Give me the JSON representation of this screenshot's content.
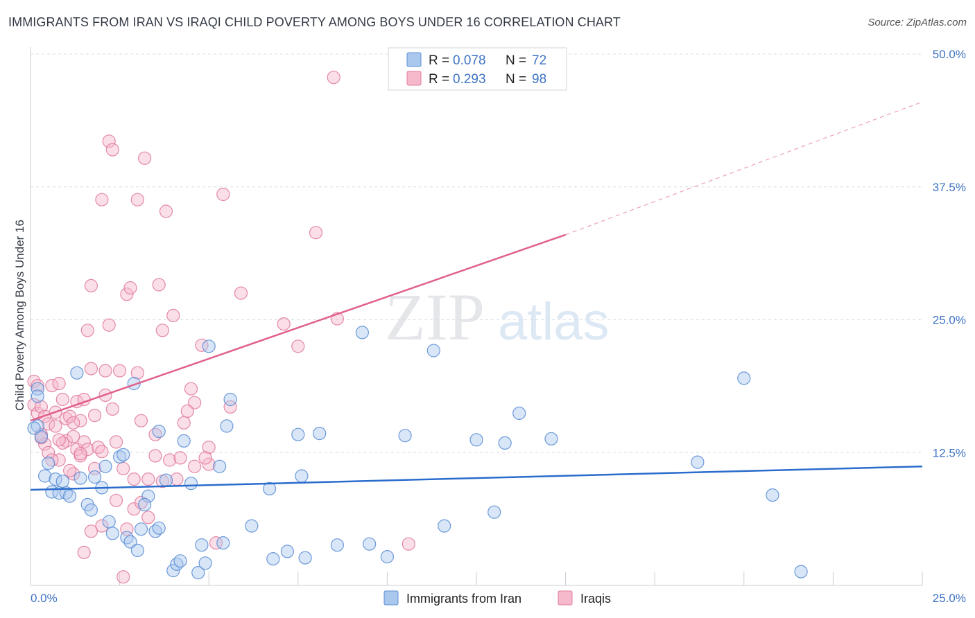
{
  "header": {
    "title": "IMMIGRANTS FROM IRAN VS IRAQI CHILD POVERTY AMONG BOYS UNDER 16 CORRELATION CHART",
    "source": "Source: ZipAtlas.com"
  },
  "watermark": {
    "zip": "ZIP",
    "atlas": "atlas"
  },
  "legend": {
    "series": [
      {
        "r_label": "R =",
        "r_value": "0.078",
        "n_label": "N =",
        "n_value": "72"
      },
      {
        "r_label": "R =",
        "r_value": "0.293",
        "n_label": "N =",
        "n_value": "98"
      }
    ]
  },
  "bottom_legend": [
    "Immigrants from Iran",
    "Iraqis"
  ],
  "colors": {
    "iran_fill": "#aac8ee",
    "iran_stroke": "#5b8fd6",
    "iran_line": "#2a6ccc",
    "iraq_fill": "#f6b9cb",
    "iraq_stroke": "#e07c9d",
    "iraq_line": "#e0608a",
    "grid": "#d9dde3",
    "tick_text": "#3f74c4"
  },
  "chart_data": {
    "type": "scatter",
    "title": "IMMIGRANTS FROM IRAN VS IRAQI CHILD POVERTY AMONG BOYS UNDER 16 CORRELATION CHART",
    "xlabel": "",
    "ylabel": "Child Poverty Among Boys Under 16",
    "xlim": [
      0,
      25
    ],
    "ylim": [
      0,
      50
    ],
    "x_tick_labels": [
      "0.0%",
      "25.0%"
    ],
    "y_ticks": [
      12.5,
      25.0,
      37.5,
      50.0
    ],
    "y_tick_labels": [
      "12.5%",
      "25.0%",
      "37.5%",
      "50.0%"
    ],
    "grid": "horizontal dashed",
    "legend_position": "top-center",
    "series": [
      {
        "name": "Immigrants from Iran",
        "R": 0.078,
        "N": 72,
        "trend": {
          "x": [
            0,
            25
          ],
          "y": [
            9.0,
            11.2
          ],
          "dashed_extension": false
        },
        "points": [
          [
            0.2,
            18.5
          ],
          [
            0.2,
            17.8
          ],
          [
            0.2,
            15.0
          ],
          [
            0.3,
            14.0
          ],
          [
            0.4,
            10.3
          ],
          [
            0.5,
            11.5
          ],
          [
            0.6,
            8.8
          ],
          [
            0.7,
            10.0
          ],
          [
            0.8,
            8.7
          ],
          [
            0.9,
            9.8
          ],
          [
            1.0,
            8.7
          ],
          [
            1.1,
            8.4
          ],
          [
            1.3,
            20.0
          ],
          [
            1.4,
            10.1
          ],
          [
            1.6,
            7.6
          ],
          [
            1.7,
            7.1
          ],
          [
            1.8,
            10.2
          ],
          [
            2.0,
            9.2
          ],
          [
            2.1,
            11.2
          ],
          [
            2.2,
            6.0
          ],
          [
            2.3,
            4.9
          ],
          [
            2.5,
            12.1
          ],
          [
            2.6,
            12.3
          ],
          [
            2.7,
            4.5
          ],
          [
            2.8,
            4.1
          ],
          [
            2.9,
            19.0
          ],
          [
            3.0,
            3.3
          ],
          [
            3.1,
            5.3
          ],
          [
            3.3,
            8.4
          ],
          [
            3.2,
            7.6
          ],
          [
            3.5,
            5.1
          ],
          [
            3.6,
            5.4
          ],
          [
            3.6,
            14.5
          ],
          [
            3.8,
            9.9
          ],
          [
            4.0,
            1.4
          ],
          [
            4.1,
            2.0
          ],
          [
            4.2,
            2.3
          ],
          [
            4.3,
            13.6
          ],
          [
            4.5,
            9.6
          ],
          [
            4.7,
            1.2
          ],
          [
            4.8,
            3.8
          ],
          [
            4.9,
            2.1
          ],
          [
            5.0,
            22.5
          ],
          [
            5.3,
            11.2
          ],
          [
            5.4,
            4.0
          ],
          [
            5.5,
            15.0
          ],
          [
            5.6,
            17.5
          ],
          [
            6.2,
            5.6
          ],
          [
            6.7,
            9.1
          ],
          [
            6.8,
            2.5
          ],
          [
            7.2,
            3.2
          ],
          [
            7.5,
            14.2
          ],
          [
            7.6,
            10.3
          ],
          [
            7.7,
            2.6
          ],
          [
            8.1,
            14.3
          ],
          [
            8.6,
            3.8
          ],
          [
            9.3,
            23.8
          ],
          [
            9.5,
            3.9
          ],
          [
            10.0,
            2.7
          ],
          [
            10.5,
            14.1
          ],
          [
            11.3,
            22.1
          ],
          [
            11.6,
            5.6
          ],
          [
            12.5,
            13.7
          ],
          [
            13.0,
            6.9
          ],
          [
            13.3,
            13.4
          ],
          [
            13.7,
            16.2
          ],
          [
            14.6,
            13.8
          ],
          [
            18.7,
            11.6
          ],
          [
            20.0,
            19.5
          ],
          [
            20.8,
            8.5
          ],
          [
            21.6,
            1.3
          ],
          [
            0.1,
            14.8
          ]
        ]
      },
      {
        "name": "Iraqis",
        "R": 0.293,
        "N": 98,
        "trend": {
          "x": [
            0,
            15
          ],
          "y": [
            15.5,
            33.0
          ],
          "dashed_extension": {
            "x": [
              15,
              25
            ],
            "y": [
              33.0,
              45.5
            ]
          }
        },
        "points": [
          [
            0.1,
            19.2
          ],
          [
            0.1,
            17.0
          ],
          [
            0.2,
            16.2
          ],
          [
            0.2,
            18.8
          ],
          [
            0.3,
            14.2
          ],
          [
            0.3,
            16.8
          ],
          [
            0.4,
            15.9
          ],
          [
            0.4,
            13.3
          ],
          [
            0.5,
            15.2
          ],
          [
            0.5,
            12.5
          ],
          [
            0.6,
            18.8
          ],
          [
            0.7,
            16.3
          ],
          [
            0.7,
            15.0
          ],
          [
            0.8,
            19.0
          ],
          [
            0.8,
            11.8
          ],
          [
            0.9,
            17.5
          ],
          [
            1.0,
            13.6
          ],
          [
            1.0,
            15.7
          ],
          [
            1.1,
            15.9
          ],
          [
            1.2,
            14.0
          ],
          [
            1.2,
            10.5
          ],
          [
            1.3,
            17.3
          ],
          [
            1.3,
            12.8
          ],
          [
            1.4,
            15.5
          ],
          [
            1.4,
            12.2
          ],
          [
            1.5,
            17.5
          ],
          [
            1.5,
            13.5
          ],
          [
            1.6,
            12.8
          ],
          [
            1.6,
            24.0
          ],
          [
            1.7,
            28.2
          ],
          [
            1.7,
            20.4
          ],
          [
            1.8,
            16.0
          ],
          [
            1.9,
            13.0
          ],
          [
            2.0,
            36.3
          ],
          [
            2.0,
            12.6
          ],
          [
            2.1,
            20.2
          ],
          [
            2.1,
            17.9
          ],
          [
            2.2,
            24.5
          ],
          [
            2.2,
            41.8
          ],
          [
            2.3,
            41.0
          ],
          [
            2.4,
            13.5
          ],
          [
            2.5,
            20.2
          ],
          [
            2.6,
            11.0
          ],
          [
            2.7,
            27.4
          ],
          [
            2.8,
            28.0
          ],
          [
            2.9,
            7.2
          ],
          [
            3.0,
            36.3
          ],
          [
            3.1,
            15.5
          ],
          [
            3.2,
            40.2
          ],
          [
            3.3,
            10.0
          ],
          [
            3.5,
            14.2
          ],
          [
            3.6,
            28.3
          ],
          [
            3.7,
            24.0
          ],
          [
            3.8,
            35.2
          ],
          [
            3.9,
            11.8
          ],
          [
            4.0,
            25.4
          ],
          [
            4.1,
            10.0
          ],
          [
            4.3,
            15.3
          ],
          [
            4.5,
            18.5
          ],
          [
            4.6,
            17.2
          ],
          [
            4.8,
            22.6
          ],
          [
            5.0,
            13.0
          ],
          [
            5.0,
            11.4
          ],
          [
            5.2,
            4.0
          ],
          [
            5.4,
            36.8
          ],
          [
            5.6,
            16.8
          ],
          [
            5.9,
            27.5
          ],
          [
            7.1,
            24.6
          ],
          [
            7.5,
            22.5
          ],
          [
            8.0,
            33.2
          ],
          [
            8.5,
            47.8
          ],
          [
            8.6,
            25.1
          ],
          [
            10.6,
            3.9
          ],
          [
            0.3,
            13.9
          ],
          [
            0.6,
            11.8
          ],
          [
            0.9,
            13.4
          ],
          [
            1.1,
            10.8
          ],
          [
            1.4,
            12.4
          ],
          [
            1.5,
            3.1
          ],
          [
            1.8,
            11.0
          ],
          [
            2.0,
            5.6
          ],
          [
            2.4,
            8.0
          ],
          [
            2.6,
            0.8
          ],
          [
            2.7,
            5.3
          ],
          [
            2.9,
            10.0
          ],
          [
            3.1,
            7.8
          ],
          [
            3.3,
            6.4
          ],
          [
            3.5,
            12.2
          ],
          [
            3.7,
            9.8
          ],
          [
            4.2,
            12.0
          ],
          [
            4.4,
            16.4
          ],
          [
            4.6,
            11.2
          ],
          [
            4.9,
            12.0
          ],
          [
            1.2,
            15.3
          ],
          [
            0.8,
            13.7
          ],
          [
            2.3,
            16.6
          ],
          [
            3.0,
            20.0
          ],
          [
            1.7,
            5.1
          ]
        ]
      }
    ]
  }
}
